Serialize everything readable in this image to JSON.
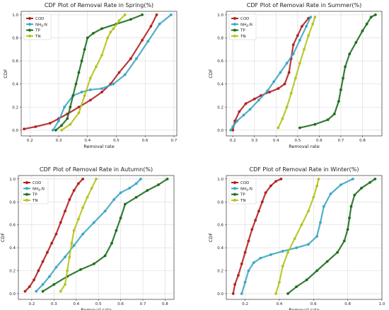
{
  "colors": {
    "COD": "#b22222",
    "NH4N": "#3ea6c4",
    "TP": "#1f6f1f",
    "TN": "#b5c41e"
  },
  "chart_data": [
    {
      "type": "line",
      "title": "CDF Plot of Removal Rate in Spring(%)",
      "xlabel": "Removal rate",
      "ylabel": "CDF",
      "xlim": [
        0.17,
        0.71
      ],
      "ylim": [
        -0.05,
        1.03
      ],
      "xticks": [
        "0.2",
        "0.3",
        "0.4",
        "0.5",
        "0.6",
        "0.7"
      ],
      "xtick_values": [
        0.2,
        0.3,
        0.4,
        0.5,
        0.6,
        0.7
      ],
      "yticks": [
        "0.0",
        "0.2",
        "0.4",
        "0.6",
        "0.8",
        "1.0"
      ],
      "ytick_values": [
        0,
        0.2,
        0.4,
        0.6,
        0.8,
        1.0
      ],
      "grid": true,
      "legend": "top-left",
      "series": [
        {
          "name": "COD",
          "x": [
            0.18,
            0.22,
            0.27,
            0.3,
            0.33,
            0.37,
            0.41,
            0.45,
            0.48,
            0.51,
            0.55,
            0.59,
            0.62,
            0.64
          ],
          "y": [
            0.01,
            0.03,
            0.06,
            0.1,
            0.14,
            0.2,
            0.26,
            0.33,
            0.4,
            0.5,
            0.62,
            0.78,
            0.9,
            1.0
          ]
        },
        {
          "name": "NH4-N",
          "x": [
            0.28,
            0.3,
            0.32,
            0.35,
            0.38,
            0.41,
            0.45,
            0.49,
            0.53,
            0.57,
            0.61,
            0.65,
            0.69
          ],
          "y": [
            0.0,
            0.08,
            0.2,
            0.3,
            0.33,
            0.35,
            0.36,
            0.4,
            0.48,
            0.62,
            0.77,
            0.92,
            1.0
          ]
        },
        {
          "name": "TP",
          "x": [
            0.29,
            0.31,
            0.33,
            0.34,
            0.35,
            0.36,
            0.37,
            0.38,
            0.39,
            0.4,
            0.42,
            0.45,
            0.5,
            0.55,
            0.59
          ],
          "y": [
            0.0,
            0.04,
            0.1,
            0.2,
            0.3,
            0.4,
            0.5,
            0.6,
            0.7,
            0.8,
            0.84,
            0.88,
            0.92,
            0.96,
            1.0
          ]
        },
        {
          "name": "TN",
          "x": [
            0.31,
            0.34,
            0.37,
            0.39,
            0.41,
            0.43,
            0.45,
            0.47,
            0.48,
            0.49,
            0.51,
            0.53
          ],
          "y": [
            0.0,
            0.05,
            0.15,
            0.3,
            0.45,
            0.55,
            0.65,
            0.8,
            0.85,
            0.88,
            0.95,
            1.0
          ]
        }
      ]
    },
    {
      "type": "line",
      "title": "CDF Plot of Removal Rate in Summer(%)",
      "xlabel": "Removal rate",
      "ylabel": "CDF",
      "xlim": [
        0.17,
        0.89
      ],
      "ylim": [
        -0.05,
        1.03
      ],
      "xticks": [
        "0.2",
        "0.3",
        "0.4",
        "0.5",
        "0.6",
        "0.7",
        "0.8"
      ],
      "xtick_values": [
        0.2,
        0.3,
        0.4,
        0.5,
        0.6,
        0.7,
        0.8
      ],
      "yticks": [
        "0.0",
        "0.2",
        "0.4",
        "0.6",
        "0.8",
        "1.0"
      ],
      "ytick_values": [
        0,
        0.2,
        0.4,
        0.6,
        0.8,
        1.0
      ],
      "grid": true,
      "legend": "top-left",
      "series": [
        {
          "name": "COD",
          "x": [
            0.2,
            0.21,
            0.23,
            0.26,
            0.3,
            0.33,
            0.37,
            0.41,
            0.44,
            0.46,
            0.47,
            0.48,
            0.5,
            0.52,
            0.55
          ],
          "y": [
            0.0,
            0.08,
            0.16,
            0.23,
            0.27,
            0.3,
            0.33,
            0.36,
            0.4,
            0.5,
            0.62,
            0.74,
            0.82,
            0.9,
            0.97
          ]
        },
        {
          "name": "NH4-N",
          "x": [
            0.19,
            0.2,
            0.22,
            0.25,
            0.28,
            0.32,
            0.36,
            0.39,
            0.42,
            0.45,
            0.48,
            0.51,
            0.54,
            0.56
          ],
          "y": [
            0.0,
            0.03,
            0.08,
            0.13,
            0.18,
            0.26,
            0.34,
            0.42,
            0.5,
            0.58,
            0.66,
            0.78,
            0.9,
            0.98
          ]
        },
        {
          "name": "TP",
          "x": [
            0.51,
            0.58,
            0.64,
            0.67,
            0.69,
            0.7,
            0.71,
            0.72,
            0.74,
            0.77,
            0.8,
            0.82,
            0.84,
            0.86
          ],
          "y": [
            0.02,
            0.05,
            0.09,
            0.14,
            0.25,
            0.35,
            0.45,
            0.55,
            0.66,
            0.76,
            0.86,
            0.92,
            0.98,
            1.0
          ]
        },
        {
          "name": "TN",
          "x": [
            0.41,
            0.43,
            0.45,
            0.47,
            0.49,
            0.51,
            0.53,
            0.55,
            0.57,
            0.58
          ],
          "y": [
            0.02,
            0.1,
            0.2,
            0.32,
            0.45,
            0.58,
            0.7,
            0.82,
            0.92,
            0.98
          ]
        }
      ]
    },
    {
      "type": "line",
      "title": "CDF Plot of Removal Rate in Autumn(%)",
      "xlabel": "Removal rate",
      "ylabel": "CDF",
      "xlim": [
        0.14,
        0.84
      ],
      "ylim": [
        -0.05,
        1.03
      ],
      "xticks": [
        "0.2",
        "0.3",
        "0.4",
        "0.5",
        "0.6",
        "0.7",
        "0.8"
      ],
      "xtick_values": [
        0.2,
        0.3,
        0.4,
        0.5,
        0.6,
        0.7,
        0.8
      ],
      "yticks": [
        "0.0",
        "0.2",
        "0.4",
        "0.6",
        "0.8",
        "1.0"
      ],
      "ytick_values": [
        0,
        0.2,
        0.4,
        0.6,
        0.8,
        1.0
      ],
      "grid": true,
      "legend": "top-left",
      "series": [
        {
          "name": "COD",
          "x": [
            0.17,
            0.19,
            0.21,
            0.23,
            0.25,
            0.27,
            0.29,
            0.31,
            0.33,
            0.35,
            0.37,
            0.39,
            0.41,
            0.43
          ],
          "y": [
            0.02,
            0.06,
            0.12,
            0.2,
            0.28,
            0.36,
            0.44,
            0.52,
            0.62,
            0.72,
            0.82,
            0.9,
            0.96,
            1.0
          ]
        },
        {
          "name": "NH4-N",
          "x": [
            0.22,
            0.25,
            0.28,
            0.31,
            0.35,
            0.39,
            0.43,
            0.48,
            0.53,
            0.57,
            0.6,
            0.64,
            0.67,
            0.69
          ],
          "y": [
            0.02,
            0.08,
            0.15,
            0.23,
            0.32,
            0.42,
            0.52,
            0.62,
            0.72,
            0.82,
            0.88,
            0.92,
            0.96,
            1.0
          ]
        },
        {
          "name": "TP",
          "x": [
            0.25,
            0.3,
            0.36,
            0.42,
            0.48,
            0.53,
            0.56,
            0.58,
            0.6,
            0.62,
            0.67,
            0.72,
            0.77,
            0.81
          ],
          "y": [
            0.02,
            0.08,
            0.15,
            0.21,
            0.26,
            0.33,
            0.44,
            0.55,
            0.66,
            0.78,
            0.84,
            0.9,
            0.95,
            1.0
          ]
        },
        {
          "name": "TN",
          "x": [
            0.33,
            0.35,
            0.36,
            0.37,
            0.38,
            0.39,
            0.41,
            0.43,
            0.45,
            0.47,
            0.49
          ],
          "y": [
            0.02,
            0.08,
            0.2,
            0.32,
            0.44,
            0.55,
            0.65,
            0.75,
            0.84,
            0.92,
            1.0
          ]
        }
      ]
    },
    {
      "type": "line",
      "title": "CDF Plot of Removal Rate in Winter(%)",
      "xlabel": "Removal rate",
      "ylabel": "CDF",
      "xlim": [
        0.09,
        1.0
      ],
      "ylim": [
        -0.05,
        1.03
      ],
      "xticks": [
        "0.2",
        "0.4",
        "0.6",
        "0.8",
        "1.0"
      ],
      "xtick_values": [
        0.2,
        0.4,
        0.6,
        0.8,
        1.0
      ],
      "yticks": [
        "0.0",
        "0.2",
        "0.4",
        "0.6",
        "0.8",
        "1.0"
      ],
      "ytick_values": [
        0,
        0.2,
        0.4,
        0.6,
        0.8,
        1.0
      ],
      "grid": true,
      "legend": "top-left",
      "series": [
        {
          "name": "COD",
          "x": [
            0.13,
            0.14,
            0.16,
            0.18,
            0.2,
            0.22,
            0.24,
            0.26,
            0.28,
            0.3,
            0.32,
            0.35,
            0.38,
            0.41
          ],
          "y": [
            0.0,
            0.08,
            0.16,
            0.26,
            0.36,
            0.46,
            0.56,
            0.64,
            0.72,
            0.8,
            0.88,
            0.94,
            0.98,
            1.0
          ]
        },
        {
          "name": "NH4-N",
          "x": [
            0.18,
            0.2,
            0.22,
            0.25,
            0.29,
            0.35,
            0.42,
            0.5,
            0.57,
            0.62,
            0.64,
            0.66,
            0.7,
            0.76,
            0.83
          ],
          "y": [
            0.0,
            0.1,
            0.2,
            0.27,
            0.31,
            0.34,
            0.37,
            0.4,
            0.43,
            0.5,
            0.62,
            0.76,
            0.87,
            0.95,
            1.0
          ]
        },
        {
          "name": "TP",
          "x": [
            0.45,
            0.5,
            0.56,
            0.62,
            0.68,
            0.74,
            0.78,
            0.8,
            0.81,
            0.82,
            0.84,
            0.88,
            0.93,
            0.96
          ],
          "y": [
            0.0,
            0.06,
            0.12,
            0.2,
            0.28,
            0.36,
            0.46,
            0.56,
            0.66,
            0.76,
            0.86,
            0.92,
            0.97,
            1.0
          ]
        },
        {
          "name": "TN",
          "x": [
            0.38,
            0.4,
            0.42,
            0.45,
            0.49,
            0.53,
            0.57,
            0.6,
            0.62,
            0.63
          ],
          "y": [
            0.0,
            0.1,
            0.24,
            0.36,
            0.48,
            0.6,
            0.72,
            0.84,
            0.94,
            1.0
          ]
        }
      ]
    }
  ],
  "legend_labels": {
    "COD": "COD",
    "NH4N_main": "NH",
    "NH4N_sub": "4",
    "NH4N_tail": "-N",
    "TP": "TP",
    "TN": "TN"
  }
}
